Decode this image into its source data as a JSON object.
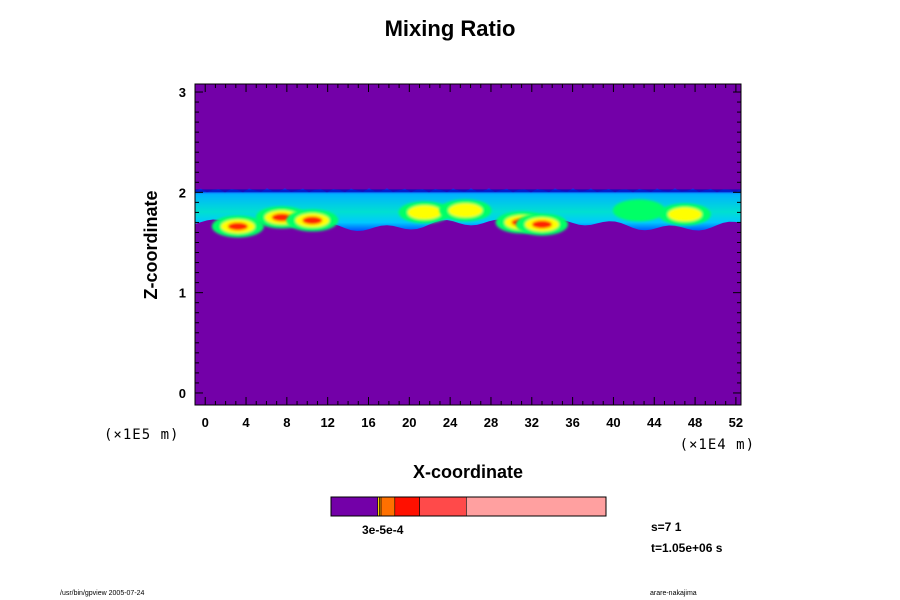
{
  "chart_data": {
    "type": "heatmap",
    "title": "Mixing Ratio",
    "xlabel": "X-coordinate",
    "ylabel": "Z-coordinate",
    "x_ticks": [
      "0",
      "4",
      "8",
      "12",
      "16",
      "20",
      "24",
      "28",
      "32",
      "36",
      "40",
      "44",
      "48",
      "52"
    ],
    "y_ticks": [
      "0",
      "1",
      "2",
      "3"
    ],
    "xlim": [
      -1,
      52.5
    ],
    "ylim": [
      -0.12,
      3.08
    ],
    "x_unit": "(×1E4 m)",
    "y_unit": "(×1E5 m)",
    "background_color": "#7300a8",
    "cloud_layer": {
      "z_top": 2.0,
      "z_bottom": 1.7,
      "core_colors": [
        "#00ff66",
        "#ffff00",
        "#ff2000"
      ],
      "cores": [
        {
          "x": 3.2,
          "z": 1.66,
          "level": 3
        },
        {
          "x": 7.5,
          "z": 1.75,
          "level": 3
        },
        {
          "x": 10.5,
          "z": 1.72,
          "level": 3
        },
        {
          "x": 21.5,
          "z": 1.8,
          "level": 2
        },
        {
          "x": 25.5,
          "z": 1.82,
          "level": 2
        },
        {
          "x": 31.0,
          "z": 1.7,
          "level": 3
        },
        {
          "x": 33.0,
          "z": 1.68,
          "level": 3
        },
        {
          "x": 42.5,
          "z": 1.82,
          "level": 1
        },
        {
          "x": 47.0,
          "z": 1.78,
          "level": 2
        }
      ]
    },
    "colorbar": {
      "colors": [
        "#7300a8",
        "#ffe000",
        "#ff9a00",
        "#ff7000",
        "#ff1000",
        "#ff4a4a",
        "#ffa0a0"
      ],
      "fractions": [
        0.17,
        0.006,
        0.006,
        0.05,
        0.09,
        0.17,
        0.508
      ],
      "label": "3e-5e-4"
    }
  },
  "info": {
    "step": "s=7 1",
    "time": "t=1.05e+06 s"
  },
  "footer": {
    "left": "/usr/bin/gpview 2005-07-24",
    "right": "arare-nakajima"
  }
}
